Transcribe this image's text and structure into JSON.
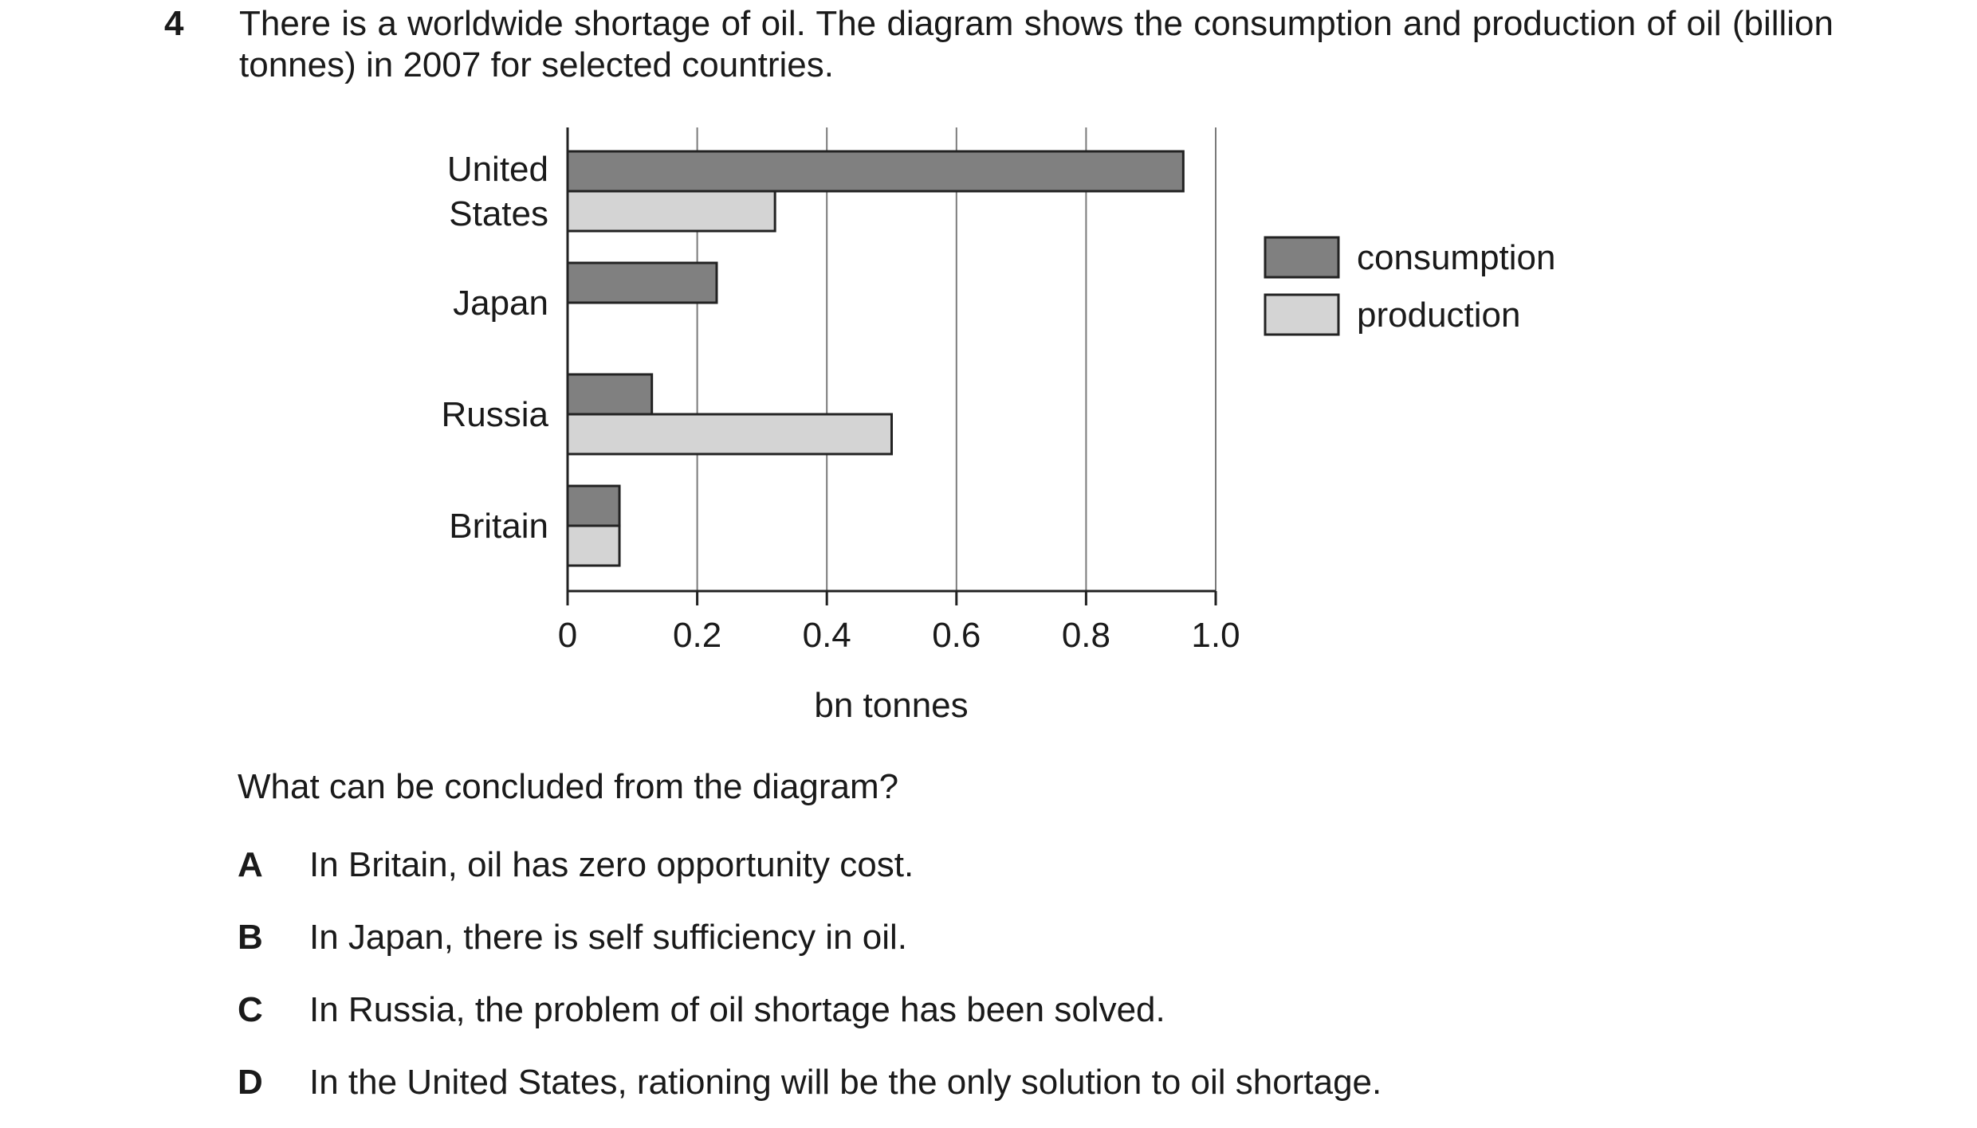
{
  "question": {
    "number": "4",
    "stem": "There is a worldwide shortage of oil. The diagram shows the consumption and production of oil (billion tonnes) in 2007 for selected countries.",
    "prompt": "What can be concluded from the diagram?",
    "options": [
      {
        "key": "A",
        "text": "In Britain, oil has zero opportunity cost."
      },
      {
        "key": "B",
        "text": "In Japan, there is self sufficiency in oil."
      },
      {
        "key": "C",
        "text": "In Russia, the problem of oil shortage has been solved."
      },
      {
        "key": "D",
        "text": "In the United States, rationing will be the only solution to oil shortage."
      }
    ]
  },
  "chart_data": {
    "type": "bar",
    "orientation": "horizontal",
    "categories": [
      [
        "United",
        "States"
      ],
      [
        "Japan"
      ],
      [
        "Russia"
      ],
      [
        "Britain"
      ]
    ],
    "series": [
      {
        "name": "consumption",
        "color": "#808080",
        "values": [
          0.95,
          0.23,
          0.13,
          0.08
        ]
      },
      {
        "name": "production",
        "color": "#d4d4d4",
        "values": [
          0.32,
          0,
          0.5,
          0.08
        ]
      }
    ],
    "xlabel": "bn tonnes",
    "xlim": [
      0,
      1.0
    ],
    "xticks": [
      "0",
      "0.2",
      "0.4",
      "0.6",
      "0.8",
      "1.0"
    ],
    "grid": "vertical",
    "legend_position": "right"
  }
}
